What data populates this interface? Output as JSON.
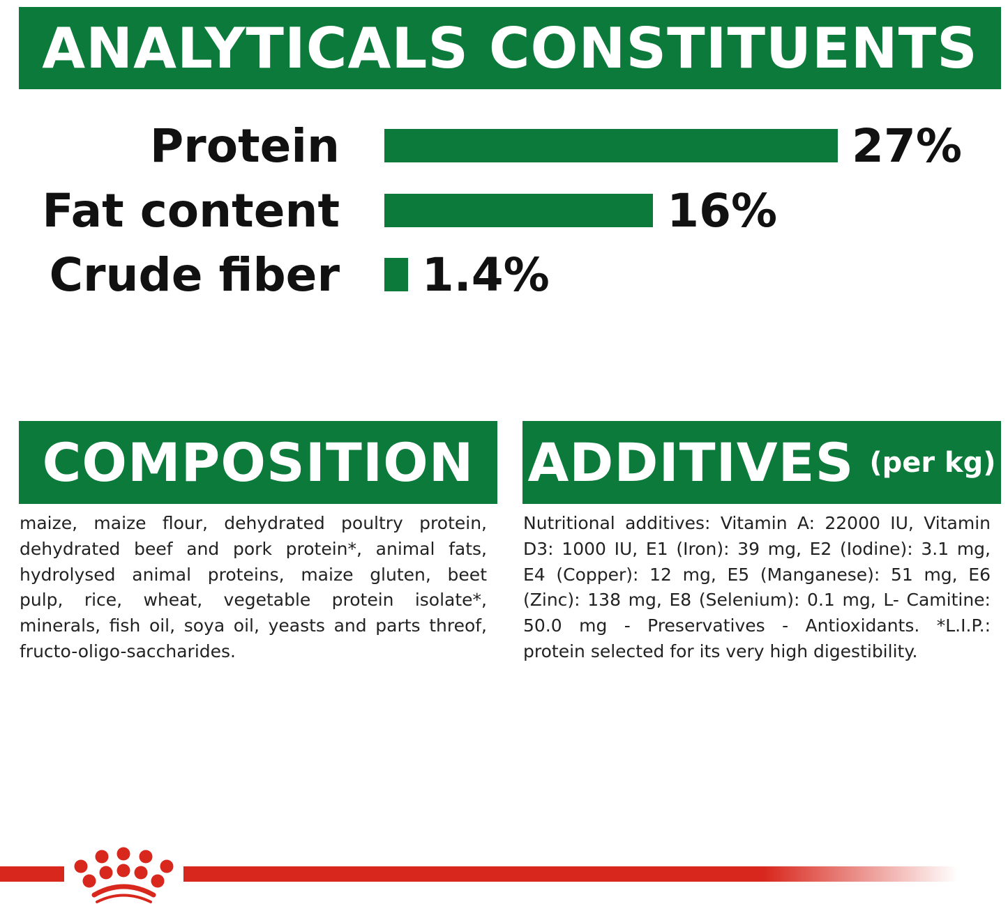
{
  "colors": {
    "brand_green": "#0b7a3b",
    "brand_red": "#d8281e"
  },
  "analytical": {
    "title": "ANALYTICALS CONSTITUENTS"
  },
  "chart_data": {
    "type": "bar",
    "orientation": "horizontal",
    "categories": [
      "Protein",
      "Fat content",
      "Crude fiber"
    ],
    "values": [
      27,
      16,
      1.4
    ],
    "data_labels": [
      "27%",
      "16%",
      "1.4%"
    ],
    "unit": "%",
    "grid": false
  },
  "composition": {
    "title": "COMPOSITION",
    "lines": [
      "maize, maize flour, dehydrated poultry protein,",
      "dehydrated beef and pork protein*, animal fats,",
      "hydrolysed animal proteins, maize gluten, beet",
      "pulp, rice, wheat, vegetable protein isolate*,",
      "minerals, fish oil, soya oil, yeasts and parts threof,",
      "fructo-oligo-saccharides."
    ]
  },
  "additives": {
    "title": "ADDITIVES",
    "subtitle": "(per kg)",
    "lines": [
      "Nutritional additives: Vitamin A: 22000 IU, Vitamin",
      "D3: 1000 IU, E1 (Iron): 39 mg, E2 (Iodine): 3.1 mg,",
      "E4 (Copper): 12 mg, E5 (Manganese): 51 mg, E6",
      "(Zinc): 138 mg, E8 (Selenium): 0.1 mg, L- Camitine:",
      "50.0 mg - Preservatives - Antioxidants. *L.I.P.:",
      "protein selected for its very high digestibility."
    ]
  },
  "footer": {
    "logo": "royal-canin-crown-logo"
  }
}
